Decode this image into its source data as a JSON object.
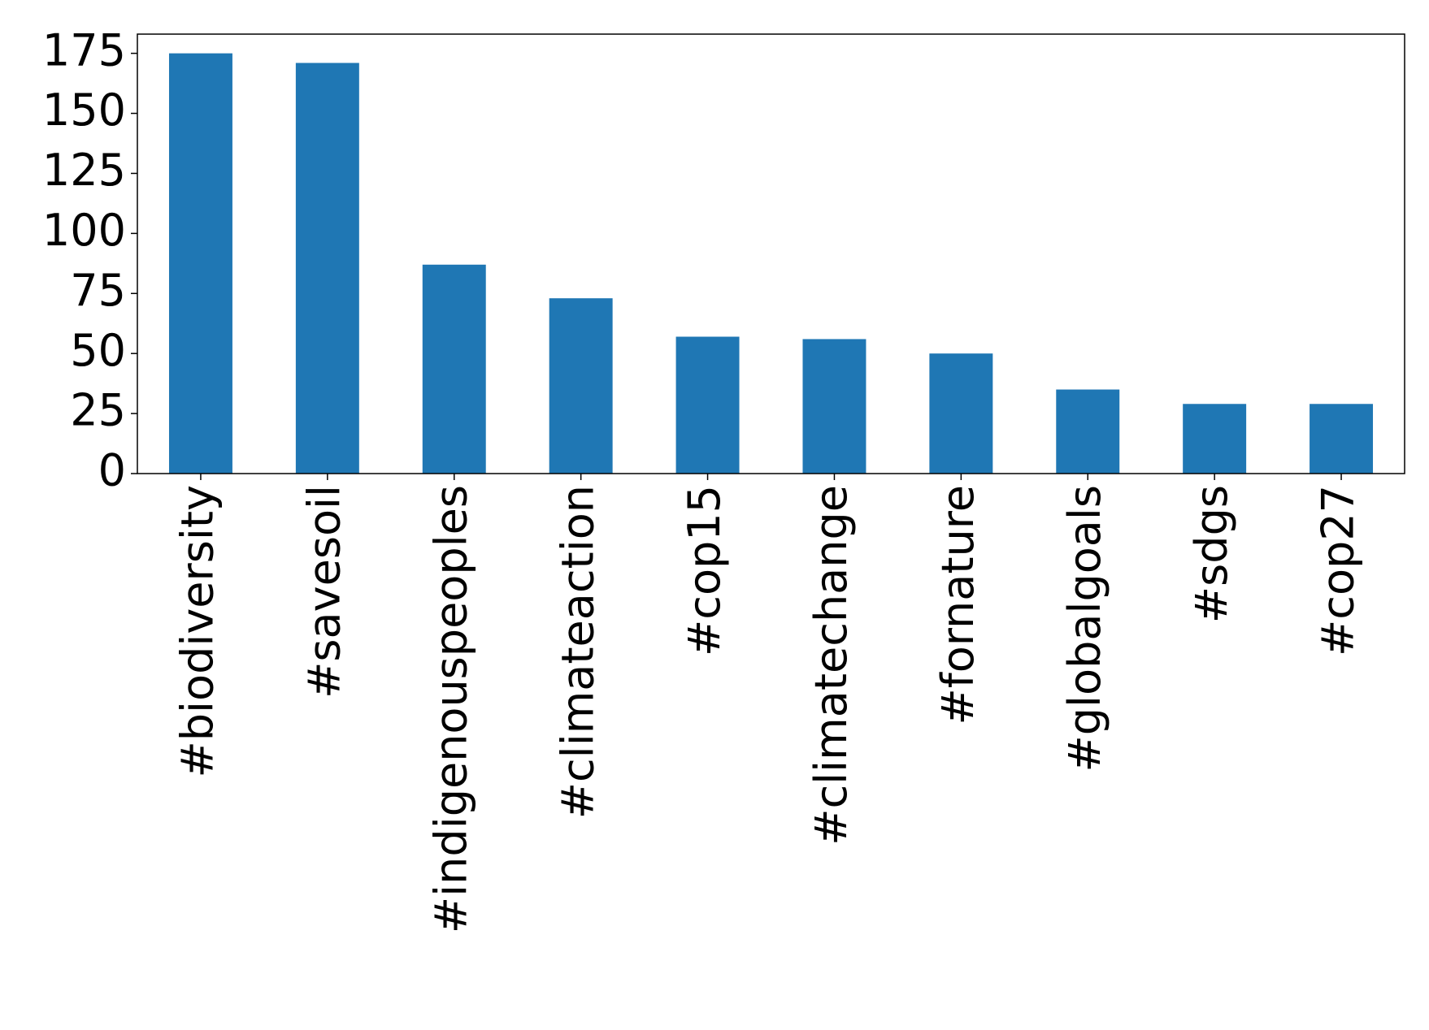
{
  "chart_data": {
    "type": "bar",
    "categories": [
      "#biodiversity",
      "#savesoil",
      "#indigenouspeoples",
      "#climateaction",
      "#cop15",
      "#climatechange",
      "#fornature",
      "#globalgoals",
      "#sdgs",
      "#cop27"
    ],
    "values": [
      175,
      171,
      87,
      73,
      57,
      56,
      50,
      35,
      29,
      29
    ],
    "color": "#1f77b4",
    "ylim": [
      0,
      183
    ],
    "yticks": [
      0,
      25,
      50,
      75,
      100,
      125,
      150,
      175
    ],
    "grid": false
  }
}
